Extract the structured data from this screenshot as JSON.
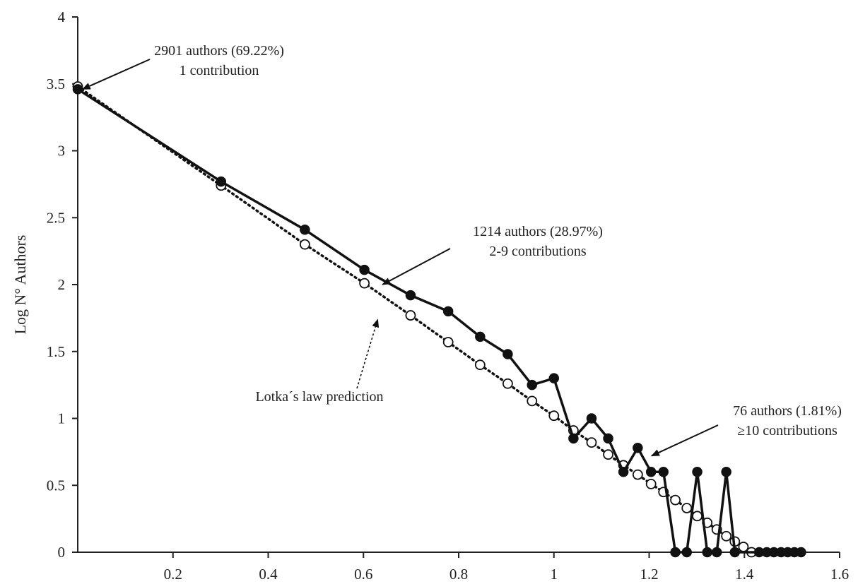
{
  "chart_data": {
    "type": "line",
    "title": "",
    "xlabel": "",
    "ylabel": "Log N° Authors",
    "xlim": [
      0,
      1.6
    ],
    "ylim": [
      0,
      4
    ],
    "x_ticks": [
      0.2,
      0.4,
      0.6,
      0.8,
      1,
      1.2,
      1.4,
      1.6
    ],
    "x_tick_labels": [
      "0.2",
      "0.4",
      "0.6",
      "0.8",
      "1",
      "1.2",
      "1.4",
      "1.6"
    ],
    "y_ticks": [
      0,
      0.5,
      1,
      1.5,
      2,
      2.5,
      3,
      3.5,
      4
    ],
    "y_tick_labels": [
      "0",
      "0.5",
      "1",
      "1.5",
      "2",
      "2.5",
      "3",
      "3.5",
      "4"
    ],
    "grid": false,
    "legend": "none",
    "series": [
      {
        "style": "solid line, filled circles",
        "color": "#111111",
        "points": [
          [
            0,
            3.46
          ],
          [
            0.301,
            2.77
          ],
          [
            0.477,
            2.41
          ],
          [
            0.602,
            2.11
          ],
          [
            0.699,
            1.92
          ],
          [
            0.778,
            1.8
          ],
          [
            0.845,
            1.61
          ],
          [
            0.903,
            1.48
          ],
          [
            0.954,
            1.25
          ],
          [
            1.0,
            1.3
          ],
          [
            1.041,
            0.85
          ],
          [
            1.079,
            1.0
          ],
          [
            1.114,
            0.85
          ],
          [
            1.146,
            0.6
          ],
          [
            1.176,
            0.78
          ],
          [
            1.204,
            0.6
          ],
          [
            1.23,
            0.6
          ],
          [
            1.255,
            0
          ],
          [
            1.279,
            0
          ],
          [
            1.301,
            0.6
          ],
          [
            1.322,
            0
          ],
          [
            1.342,
            0
          ],
          [
            1.362,
            0.6
          ],
          [
            1.38,
            0
          ],
          [
            1.431,
            0
          ],
          [
            1.447,
            0
          ],
          [
            1.462,
            0
          ],
          [
            1.477,
            0
          ],
          [
            1.491,
            0
          ],
          [
            1.505,
            0
          ],
          [
            1.519,
            0
          ]
        ]
      },
      {
        "style": "dotted line, open circles",
        "color": "#111111",
        "points": [
          [
            0,
            3.48
          ],
          [
            0.301,
            2.74
          ],
          [
            0.477,
            2.3
          ],
          [
            0.602,
            2.01
          ],
          [
            0.699,
            1.77
          ],
          [
            0.778,
            1.57
          ],
          [
            0.845,
            1.4
          ],
          [
            0.903,
            1.26
          ],
          [
            0.954,
            1.13
          ],
          [
            1.0,
            1.02
          ],
          [
            1.041,
            0.91
          ],
          [
            1.079,
            0.82
          ],
          [
            1.114,
            0.73
          ],
          [
            1.146,
            0.65
          ],
          [
            1.176,
            0.58
          ],
          [
            1.204,
            0.51
          ],
          [
            1.23,
            0.45
          ],
          [
            1.255,
            0.39
          ],
          [
            1.279,
            0.33
          ],
          [
            1.301,
            0.27
          ],
          [
            1.322,
            0.22
          ],
          [
            1.342,
            0.17
          ],
          [
            1.362,
            0.12
          ],
          [
            1.38,
            0.08
          ],
          [
            1.398,
            0.04
          ],
          [
            1.415,
            0.0
          ]
        ]
      }
    ],
    "annotations": [
      {
        "lines": [
          "2901 authors (69.22%)",
          "1 contribution"
        ],
        "target": [
          0.01,
          3.46
        ],
        "arrow": "solid"
      },
      {
        "lines": [
          "1214 authors (28.97%)",
          "2-9 contributions"
        ],
        "target": [
          0.64,
          2.0
        ],
        "arrow": "solid"
      },
      {
        "lines": [
          "Lotka´s law prediction"
        ],
        "target": [
          0.63,
          1.74
        ],
        "arrow": "dotted"
      },
      {
        "lines": [
          "76 authors (1.81%)",
          "≥10 contributions"
        ],
        "target": [
          1.205,
          0.72
        ],
        "arrow": "solid"
      }
    ]
  }
}
